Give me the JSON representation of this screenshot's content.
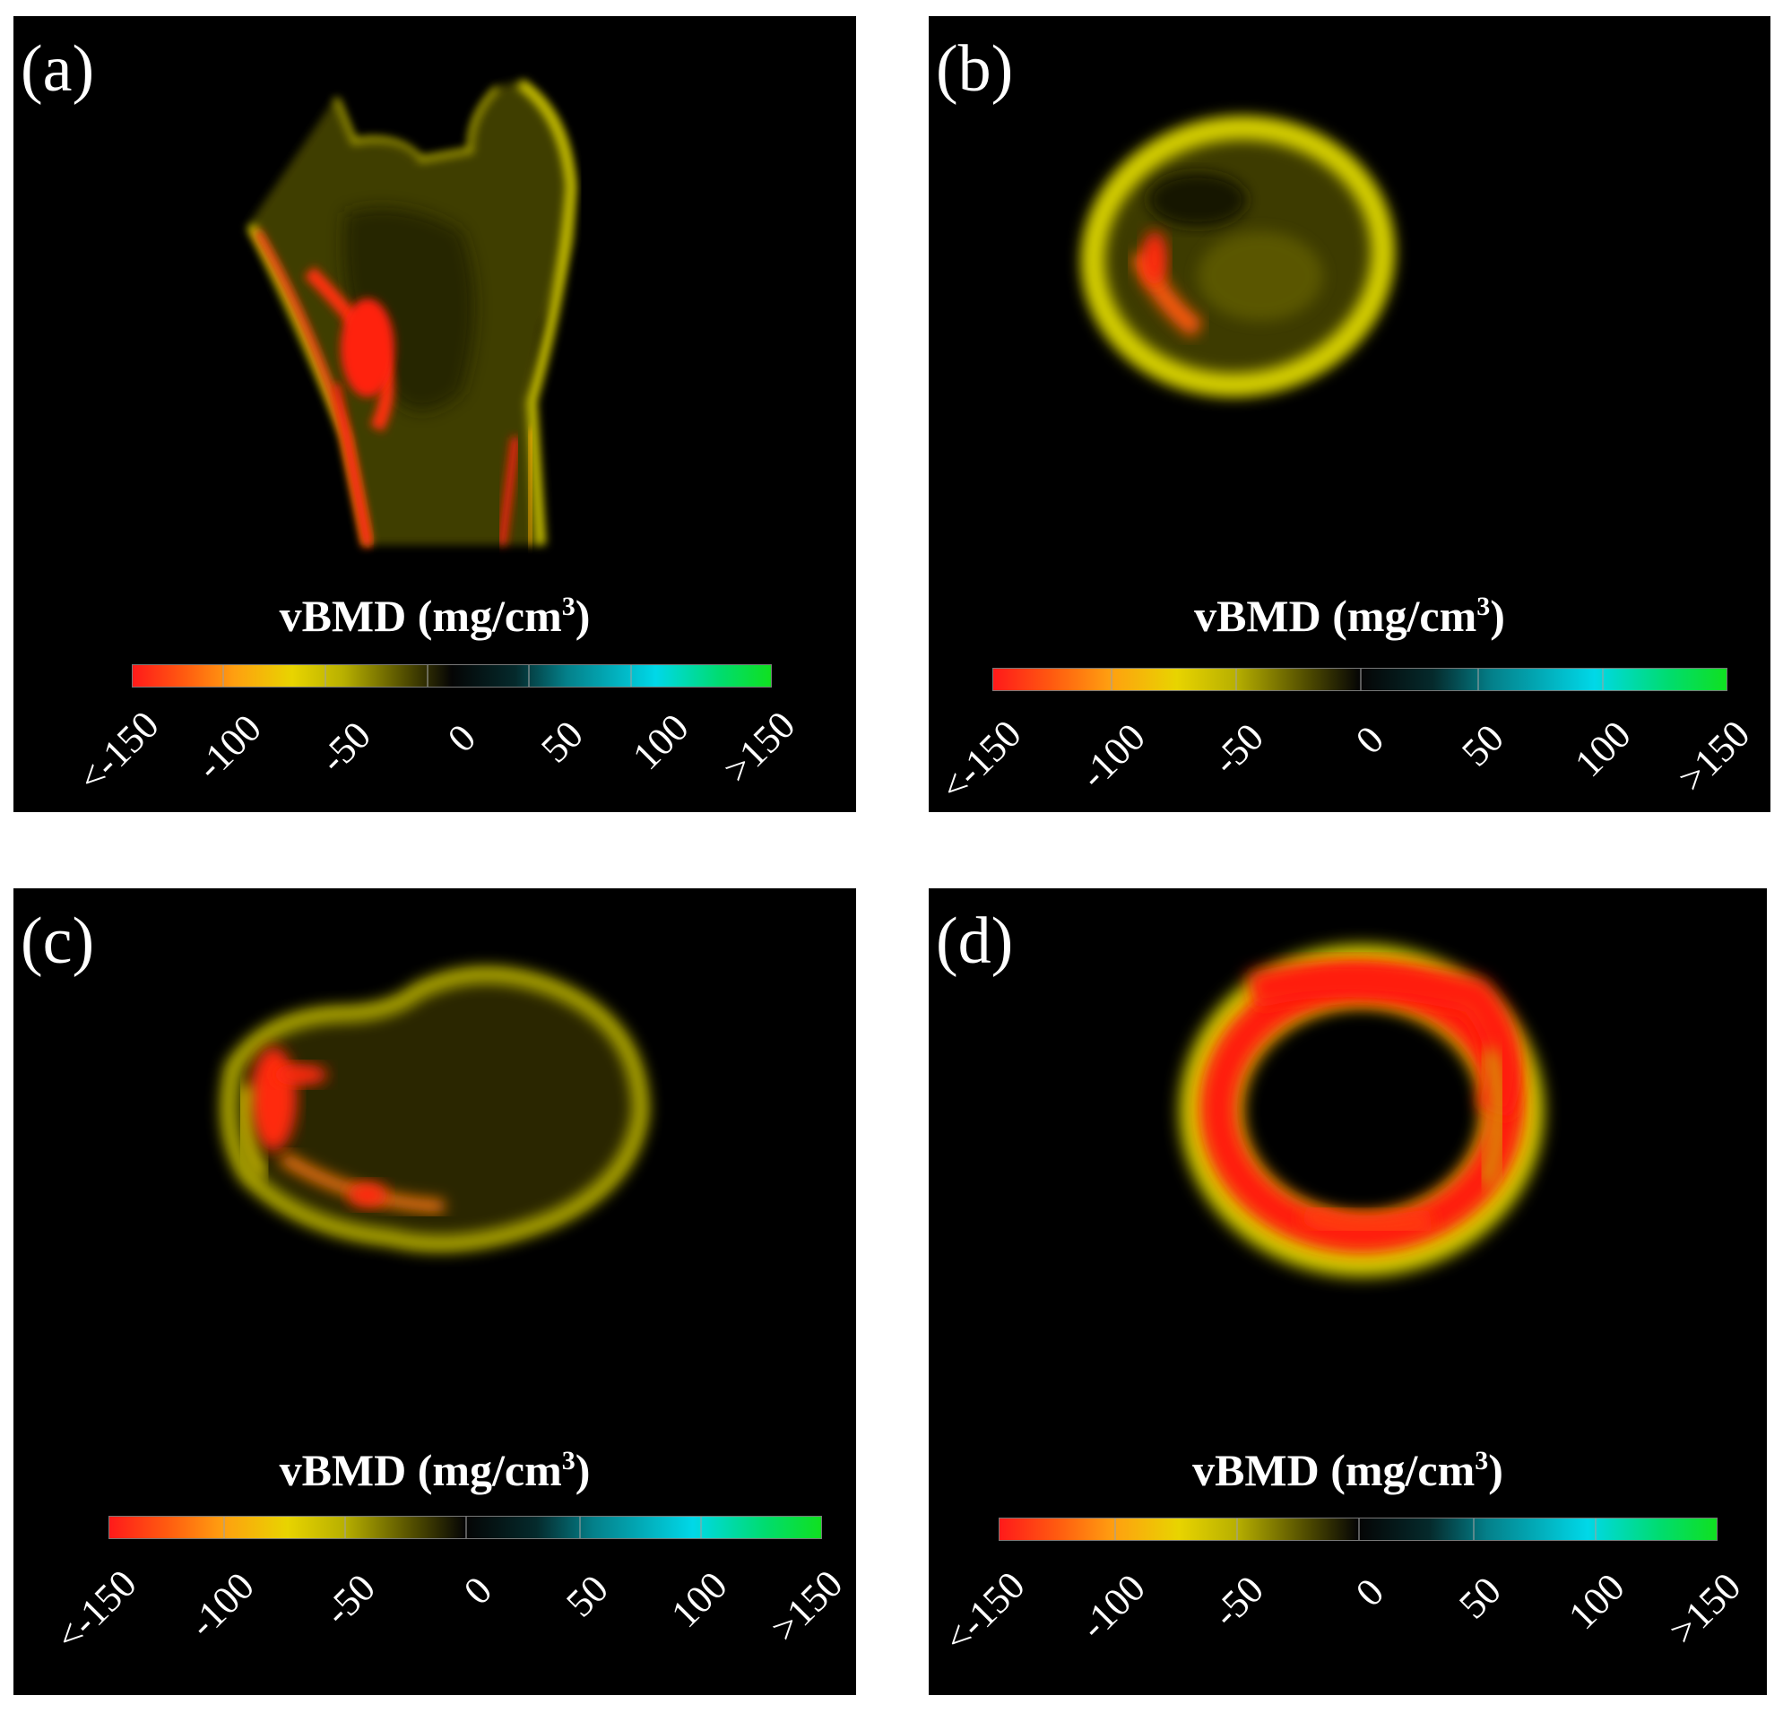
{
  "panels": [
    {
      "label": "(a)",
      "colorbar": {
        "title": "vBMD (mg/cm",
        "title_sup": "3",
        "title_close": ")",
        "tick_labels": [
          "<-150",
          "-100",
          "-50",
          "0",
          "50",
          "100",
          ">150"
        ]
      }
    },
    {
      "label": "(b)",
      "colorbar": {
        "title": "vBMD (mg/cm",
        "title_sup": "3",
        "title_close": ")",
        "tick_labels": [
          "<-150",
          "-100",
          "-50",
          "0",
          "50",
          "100",
          ">150"
        ]
      }
    },
    {
      "label": "(c)",
      "colorbar": {
        "title": "vBMD (mg/cm",
        "title_sup": "3",
        "title_close": ")",
        "tick_labels": [
          "<-150",
          "-100",
          "-50",
          "0",
          "50",
          "100",
          ">150"
        ]
      }
    },
    {
      "label": "(d)",
      "colorbar": {
        "title": "vBMD (mg/cm",
        "title_sup": "3",
        "title_close": ")",
        "tick_labels": [
          "<-150",
          "-100",
          "-50",
          "0",
          "50",
          "100",
          ">150"
        ]
      }
    }
  ],
  "colors": {
    "background": "#000000",
    "low": "#ff1a1a",
    "mid_low": "#e8d400",
    "zero": "#050505",
    "mid_high": "#00d8e8",
    "high": "#10e020"
  }
}
